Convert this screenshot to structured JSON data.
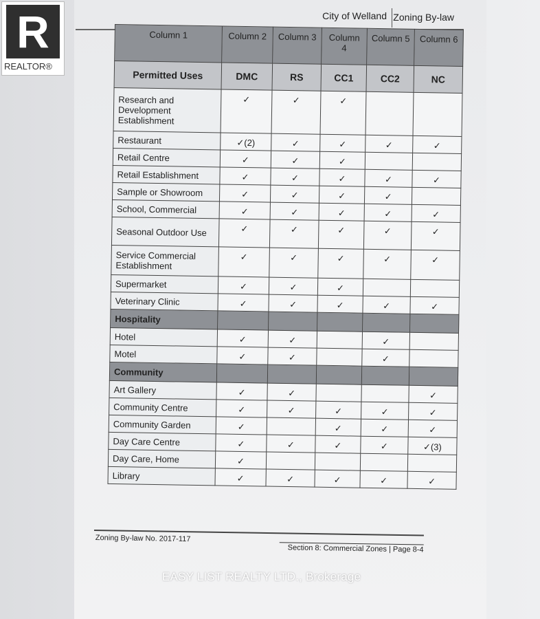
{
  "logo": {
    "text": "REALTOR®",
    "letter": "R"
  },
  "header": {
    "city": "City of Welland",
    "bylaw": "Zoning By-law"
  },
  "table": {
    "column_headers": [
      "Column 1",
      "Column 2",
      "Column 3",
      "Column 4",
      "Column 5",
      "Column 6"
    ],
    "zone_headers": [
      "Permitted Uses",
      "DMC",
      "RS",
      "CC1",
      "CC2",
      "NC"
    ],
    "rows": [
      {
        "type": "row",
        "use": "Research and Development Establishment",
        "cells": [
          "✓",
          "✓",
          "✓",
          "",
          ""
        ]
      },
      {
        "type": "row",
        "use": "Restaurant",
        "cells": [
          "✓(2)",
          "✓",
          "✓",
          "✓",
          "✓"
        ]
      },
      {
        "type": "row",
        "use": "Retail Centre",
        "cells": [
          "✓",
          "✓",
          "✓",
          "",
          ""
        ]
      },
      {
        "type": "row",
        "use": "Retail Establishment",
        "cells": [
          "✓",
          "✓",
          "✓",
          "✓",
          "✓"
        ]
      },
      {
        "type": "row",
        "use": "Sample or Showroom",
        "cells": [
          "✓",
          "✓",
          "✓",
          "✓",
          ""
        ]
      },
      {
        "type": "row",
        "use": "School, Commercial",
        "cells": [
          "✓",
          "✓",
          "✓",
          "✓",
          "✓"
        ]
      },
      {
        "type": "row",
        "use": "Seasonal Outdoor Use",
        "cells": [
          "✓",
          "✓",
          "✓",
          "✓",
          "✓"
        ]
      },
      {
        "type": "row",
        "use": "Service Commercial Establishment",
        "cells": [
          "✓",
          "✓",
          "✓",
          "✓",
          "✓"
        ]
      },
      {
        "type": "row",
        "use": "Supermarket",
        "cells": [
          "✓",
          "✓",
          "✓",
          "",
          ""
        ]
      },
      {
        "type": "row",
        "use": "Veterinary Clinic",
        "cells": [
          "✓",
          "✓",
          "✓",
          "✓",
          "✓"
        ]
      },
      {
        "type": "section",
        "use": "Hospitality"
      },
      {
        "type": "row",
        "use": "Hotel",
        "cells": [
          "✓",
          "✓",
          "",
          "✓",
          ""
        ]
      },
      {
        "type": "row",
        "use": "Motel",
        "cells": [
          "✓",
          "✓",
          "",
          "✓",
          ""
        ]
      },
      {
        "type": "section",
        "use": "Community"
      },
      {
        "type": "row",
        "use": "Art Gallery",
        "cells": [
          "✓",
          "✓",
          "",
          "",
          "✓"
        ]
      },
      {
        "type": "row",
        "use": "Community Centre",
        "cells": [
          "✓",
          "✓",
          "✓",
          "✓",
          "✓"
        ]
      },
      {
        "type": "row",
        "use": "Community Garden",
        "cells": [
          "✓",
          "",
          "✓",
          "✓",
          "✓"
        ]
      },
      {
        "type": "row",
        "use": "Day Care Centre",
        "cells": [
          "✓",
          "✓",
          "✓",
          "✓",
          "✓(3)"
        ]
      },
      {
        "type": "row",
        "use": "Day Care, Home",
        "cells": [
          "✓",
          "",
          "",
          "",
          ""
        ]
      },
      {
        "type": "row",
        "use": "Library",
        "cells": [
          "✓",
          "✓",
          "✓",
          "✓",
          "✓"
        ]
      }
    ]
  },
  "footer": {
    "left": "Zoning By-law No. 2017-117",
    "right": "Section 8:  Commercial Zones  |  Page 8-4"
  },
  "watermark": "EASY LIST REALTY LTD., Brokerage"
}
